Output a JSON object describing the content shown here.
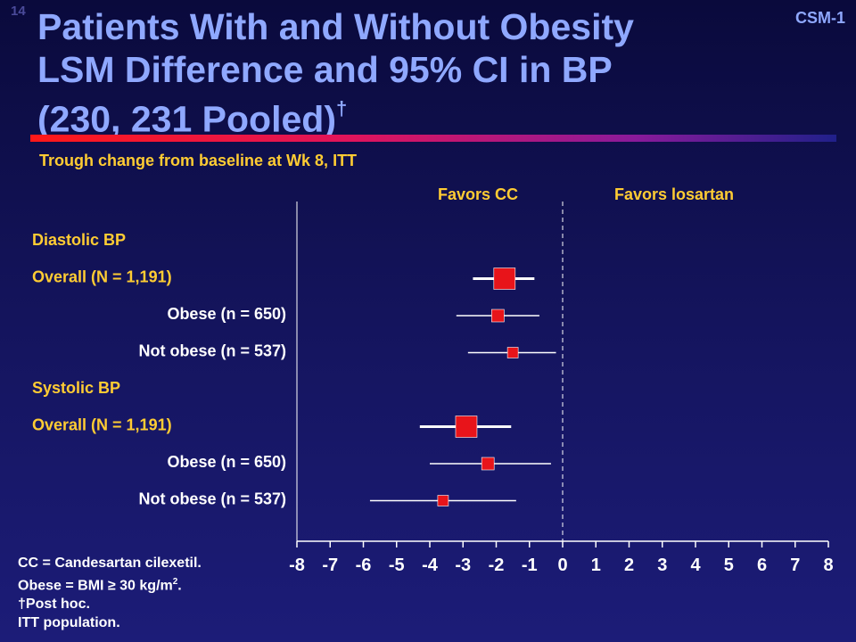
{
  "slide_number": "14",
  "slide_code": "CSM-1",
  "title_lines": [
    "Patients With and Without Obesity",
    "LSM Difference and 95% CI in BP",
    "(230, 231 Pooled)"
  ],
  "title_dagger": "†",
  "subtitle": "Trough change from baseline at Wk 8, ITT",
  "footnotes": [
    "CC = Candesartan cilexetil.",
    "Obese = BMI ≥ 30 kg/m",
    "†Post hoc.",
    "ITT population."
  ],
  "footnote_superscript": "2",
  "footnote_suffix": ".",
  "colors": {
    "title": "#8fa8ff",
    "labels": "#ffcc33",
    "marker": "#e8141a",
    "background": "#151560"
  },
  "chart_data": {
    "type": "forest",
    "favors_left": "Favors CC",
    "favors_right": "Favors losartan",
    "xlim": [
      -8,
      8
    ],
    "x_ticks": [
      "-8",
      "-7",
      "-6",
      "-5",
      "-4",
      "-3",
      "-2",
      "-1",
      "0",
      "1",
      "2",
      "3",
      "4",
      "5",
      "6",
      "7",
      "8"
    ],
    "reference_line": 0,
    "rows": [
      {
        "label": "Diastolic BP",
        "style": "header"
      },
      {
        "label": "Overall (N = 1,191)",
        "style": "group",
        "estimate": -1.75,
        "ci_low": -2.7,
        "ci_high": -0.85,
        "weight": "large"
      },
      {
        "label": "Obese (n = 650)",
        "style": "sub",
        "estimate": -1.95,
        "ci_low": -3.2,
        "ci_high": -0.7,
        "weight": "medium"
      },
      {
        "label": "Not obese (n = 537)",
        "style": "sub",
        "estimate": -1.5,
        "ci_low": -2.85,
        "ci_high": -0.2,
        "weight": "small"
      },
      {
        "label": "Systolic BP",
        "style": "header"
      },
      {
        "label": "Overall (N = 1,191)",
        "style": "group",
        "estimate": -2.9,
        "ci_low": -4.3,
        "ci_high": -1.55,
        "weight": "large"
      },
      {
        "label": "Obese (n = 650)",
        "style": "sub",
        "estimate": -2.25,
        "ci_low": -4.0,
        "ci_high": -0.35,
        "weight": "medium"
      },
      {
        "label": "Not obese (n = 537)",
        "style": "sub",
        "estimate": -3.6,
        "ci_low": -5.8,
        "ci_high": -1.4,
        "weight": "small"
      }
    ]
  }
}
